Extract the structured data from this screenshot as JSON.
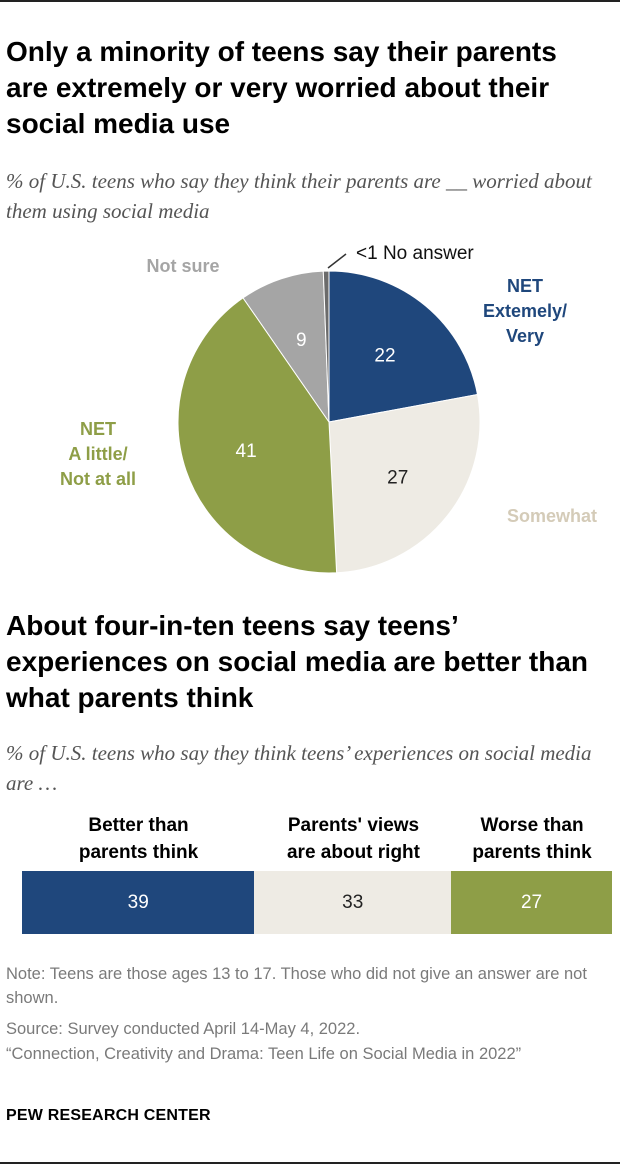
{
  "chart1": {
    "title": "Only a minority of teens say their parents are extremely or very worried about their social media use",
    "subtitle": "% of U.S. teens who say they think their parents are __ worried about them using social media",
    "chart_data": {
      "type": "pie",
      "slices": [
        {
          "label": "NET Extemely/ Very",
          "value": 22,
          "value_label": "22",
          "color": "#1f477c"
        },
        {
          "label": "Somewhat",
          "value": 27,
          "value_label": "27",
          "color": "#eeebe4"
        },
        {
          "label": "NET A little/ Not at all",
          "value": 41,
          "value_label": "41",
          "color": "#8e9e47"
        },
        {
          "label": "Not sure",
          "value": 9,
          "value_label": "9",
          "color": "#a5a5a5"
        },
        {
          "label": "No answer",
          "value": 0.6,
          "value_label": "<1",
          "color": "#6b6b6b"
        }
      ]
    },
    "labels": {
      "net_extremely_1": "NET",
      "net_extremely_2": "Extemely/",
      "net_extremely_3": "Very",
      "somewhat": "Somewhat",
      "net_little_1": "NET",
      "net_little_2": "A little/",
      "net_little_3": "Not at all",
      "not_sure": "Not sure",
      "no_answer": "<1 No answer"
    }
  },
  "chart2": {
    "title": "About four-in-ten teens say teens’ experiences on social media are better than what parents think",
    "subtitle": "% of U.S. teens who say they think teens’ experiences on social media are …",
    "chart_data": {
      "type": "bar",
      "orientation": "horizontal-stacked",
      "categories": [
        "Better than parents think",
        "Parents' views are about right",
        "Worse than parents think"
      ],
      "values": [
        39,
        33,
        27
      ],
      "colors": [
        "#1f477c",
        "#eeebe4",
        "#8e9e47"
      ],
      "text_colors": [
        "#ffffff",
        "#222222",
        "#ffffff"
      ]
    },
    "headers": [
      {
        "line1": "Better than",
        "line2": "parents think"
      },
      {
        "line1": "Parents' views",
        "line2": "are about right"
      },
      {
        "line1": "Worse than",
        "line2": "parents think"
      }
    ]
  },
  "notes": {
    "note": "Note: Teens are those ages 13 to 17. Those who did not give an answer are not shown.",
    "source": "Source: Survey conducted April 14-May 4, 2022.",
    "report": "“Connection, Creativity and Drama: Teen Life on Social Media in 2022”"
  },
  "footer": "PEW RESEARCH CENTER"
}
